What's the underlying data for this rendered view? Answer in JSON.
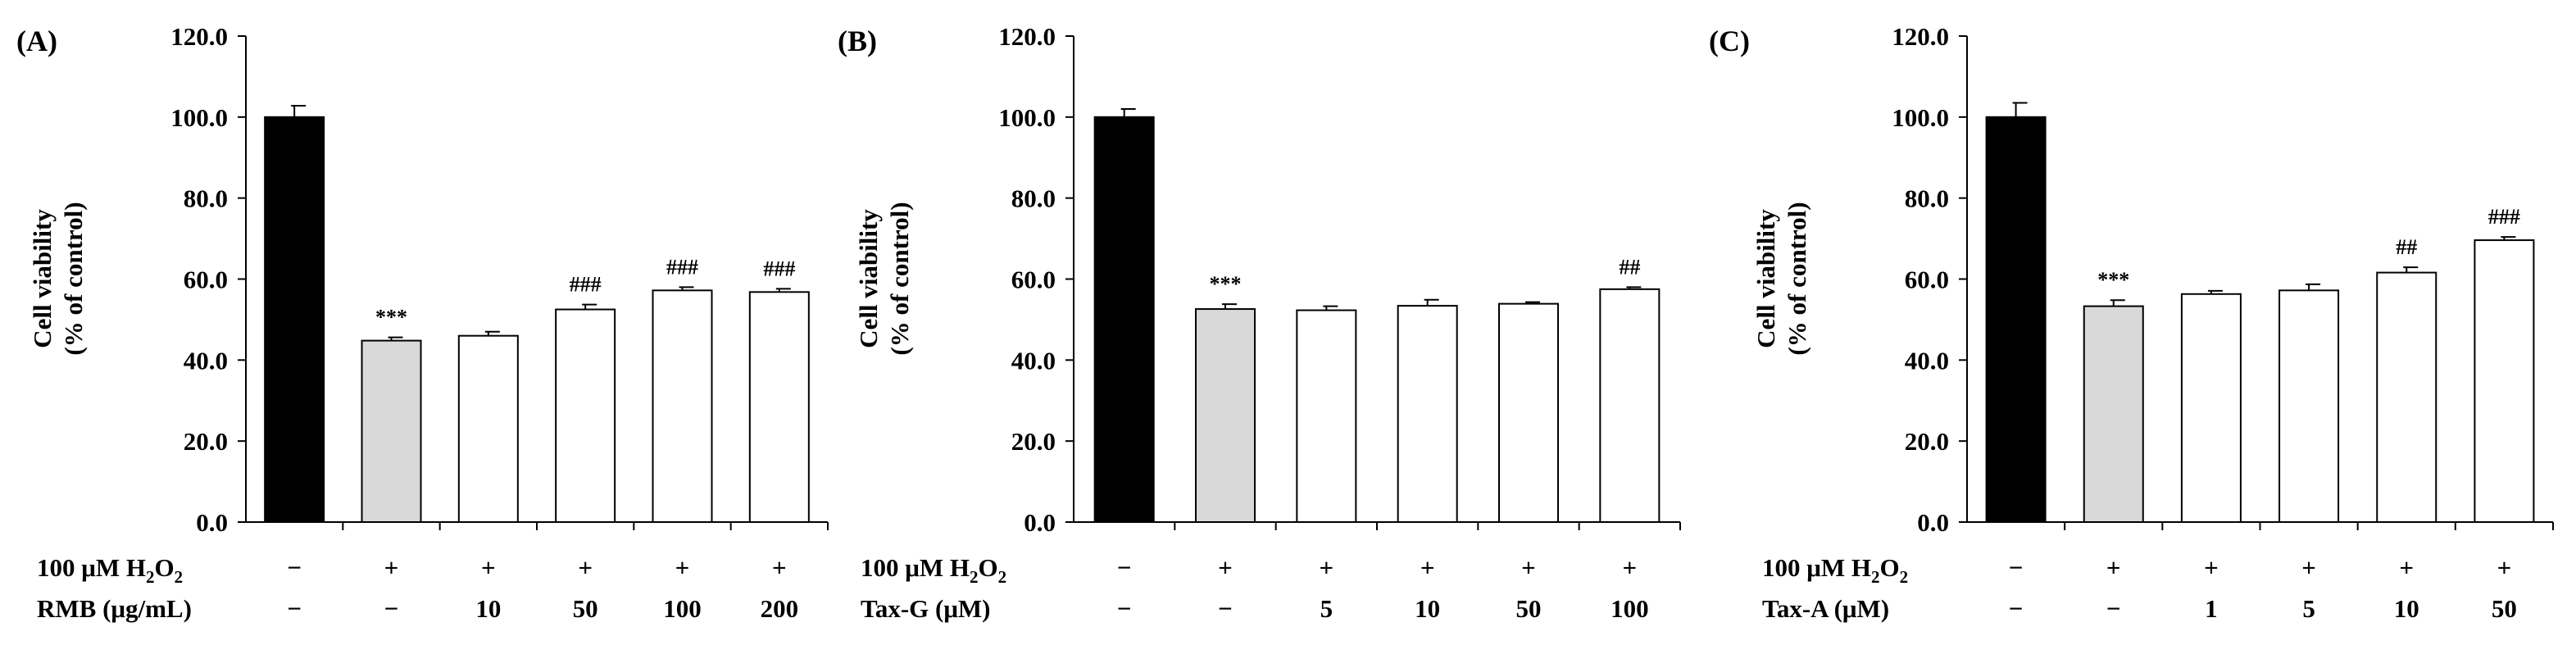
{
  "chart_data": [
    {
      "type": "bar",
      "panel_label": "(A)",
      "ylabel_lines": [
        "Cell viability",
        "(% of control)"
      ],
      "ylim": [
        0,
        120
      ],
      "yticks": [
        "0.0",
        "20.0",
        "40.0",
        "60.0",
        "80.0",
        "100.0",
        "120.0"
      ],
      "values": [
        100.0,
        44.8,
        46.0,
        52.5,
        57.2,
        56.8
      ],
      "errors": [
        2.8,
        0.8,
        1.0,
        1.2,
        0.8,
        0.8
      ],
      "bar_colors": [
        "#000000",
        "#d9d9d9",
        "#ffffff",
        "#ffffff",
        "#ffffff",
        "#ffffff"
      ],
      "significance": [
        "",
        "***",
        "",
        "###",
        "###",
        "###"
      ],
      "rows": [
        {
          "label": "100 μM H2O2",
          "label_parts": [
            "100 μM H",
            "2",
            "O",
            "2"
          ],
          "cells": [
            "−",
            "+",
            "+",
            "+",
            "+",
            "+"
          ]
        },
        {
          "label": "RMB (μg/mL)",
          "cells": [
            "−",
            "−",
            "10",
            "50",
            "100",
            "200"
          ]
        }
      ]
    },
    {
      "type": "bar",
      "panel_label": "(B)",
      "ylabel_lines": [
        "Cell viability",
        "(% of control)"
      ],
      "ylim": [
        0,
        120
      ],
      "yticks": [
        "0.0",
        "20.0",
        "40.0",
        "60.0",
        "80.0",
        "100.0",
        "120.0"
      ],
      "values": [
        100.0,
        52.6,
        52.3,
        53.4,
        53.9,
        57.5
      ],
      "errors": [
        2.0,
        1.2,
        1.0,
        1.5,
        0.4,
        0.5
      ],
      "bar_colors": [
        "#000000",
        "#d9d9d9",
        "#ffffff",
        "#ffffff",
        "#ffffff",
        "#ffffff"
      ],
      "significance": [
        "",
        "***",
        "",
        "",
        "",
        "##"
      ],
      "rows": [
        {
          "label": "100 μM H2O2",
          "label_parts": [
            "100 μM H",
            "2",
            "O",
            "2"
          ],
          "cells": [
            "−",
            "+",
            "+",
            "+",
            "+",
            "+"
          ]
        },
        {
          "label": "Tax-G (μM)",
          "cells": [
            "−",
            "−",
            "5",
            "10",
            "50",
            "100"
          ]
        }
      ]
    },
    {
      "type": "bar",
      "panel_label": "(C)",
      "ylabel_lines": [
        "Cell viability",
        "(% of control)"
      ],
      "ylim": [
        0,
        120
      ],
      "yticks": [
        "0.0",
        "20.0",
        "40.0",
        "60.0",
        "80.0",
        "100.0",
        "120.0"
      ],
      "values": [
        100.0,
        53.3,
        56.3,
        57.2,
        61.6,
        69.6
      ],
      "errors": [
        3.5,
        1.5,
        0.8,
        1.5,
        1.3,
        0.8
      ],
      "bar_colors": [
        "#000000",
        "#d9d9d9",
        "#ffffff",
        "#ffffff",
        "#ffffff",
        "#ffffff"
      ],
      "significance": [
        "",
        "***",
        "",
        "",
        "##",
        "###"
      ],
      "rows": [
        {
          "label": "100 μM H2O2",
          "label_parts": [
            "100 μM H",
            "2",
            "O",
            "2"
          ],
          "cells": [
            "−",
            "+",
            "+",
            "+",
            "+",
            "+"
          ]
        },
        {
          "label": "Tax-A (μM)",
          "cells": [
            "−",
            "−",
            "1",
            "5",
            "10",
            "50"
          ]
        }
      ]
    }
  ]
}
